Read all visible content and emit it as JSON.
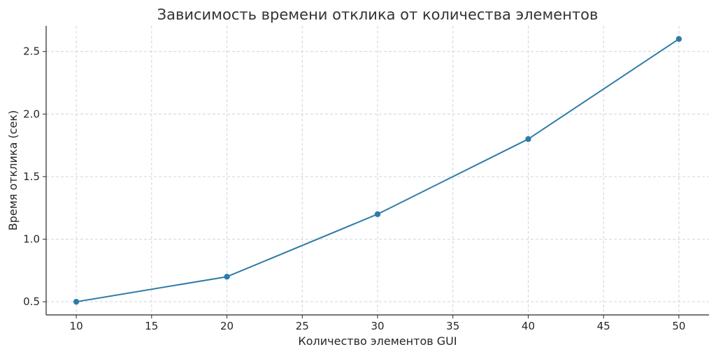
{
  "chart_data": {
    "type": "line",
    "title": "Зависимость времени отклика от количества элементов",
    "xlabel": "Количество элементов GUI",
    "ylabel": "Время отклика (сек)",
    "x": [
      10,
      20,
      30,
      40,
      50
    ],
    "series": [
      {
        "values": [
          0.5,
          0.7,
          1.2,
          1.8,
          2.6
        ],
        "color": "#2f7ba8"
      }
    ],
    "xlim": [
      8,
      52
    ],
    "ylim": [
      0.395,
      2.705
    ],
    "xticks": [
      10,
      15,
      20,
      25,
      30,
      35,
      40,
      45,
      50
    ],
    "yticks": [
      0.5,
      1.0,
      1.5,
      2.0,
      2.5
    ],
    "grid": true,
    "markers": true
  }
}
